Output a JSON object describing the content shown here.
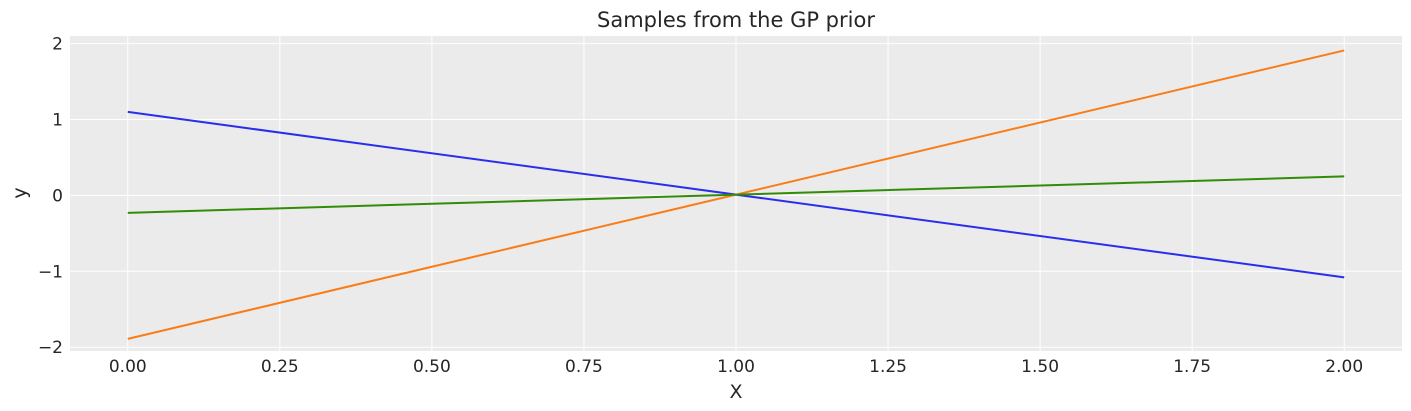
{
  "chart_data": {
    "type": "line",
    "title": "Samples from the GP prior",
    "xlabel": "X",
    "ylabel": "y",
    "xlim": [
      -0.095,
      2.095
    ],
    "ylim": [
      -2.05,
      2.1
    ],
    "xticks": [
      0.0,
      0.25,
      0.5,
      0.75,
      1.0,
      1.25,
      1.5,
      1.75,
      2.0
    ],
    "xtick_labels": [
      "0.00",
      "0.25",
      "0.50",
      "0.75",
      "1.00",
      "1.25",
      "1.50",
      "1.75",
      "2.00"
    ],
    "yticks": [
      -2,
      -1,
      0,
      1,
      2
    ],
    "ytick_labels": [
      "−2",
      "−1",
      "0",
      "1",
      "2"
    ],
    "grid": true,
    "background_color": "#ebebeb",
    "series": [
      {
        "color": "#2a2eec",
        "x": [
          0.0,
          2.0
        ],
        "y": [
          1.1,
          -1.08
        ]
      },
      {
        "color": "#fa7c17",
        "x": [
          0.0,
          2.0
        ],
        "y": [
          -1.89,
          1.91
        ]
      },
      {
        "color": "#328c06",
        "x": [
          0.0,
          2.0
        ],
        "y": [
          -0.23,
          0.25
        ]
      }
    ]
  }
}
